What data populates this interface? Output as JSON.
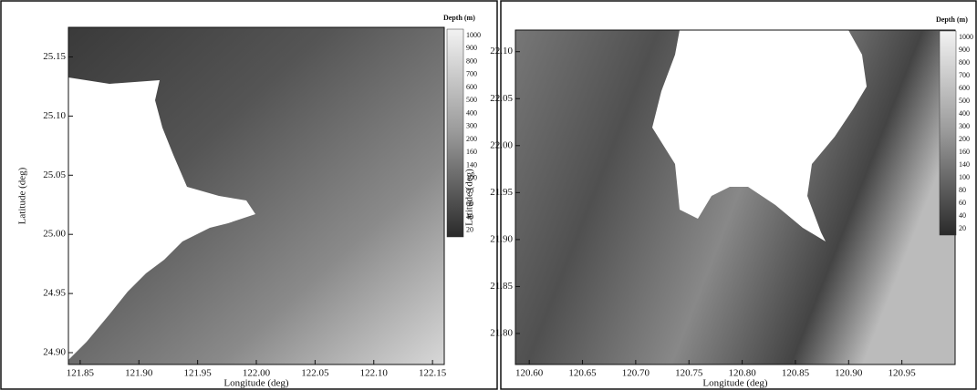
{
  "chart_data": [
    {
      "type": "heatmap",
      "xlabel": "Longitude (deg)",
      "ylabel": "Latitude (deg)",
      "xlim": [
        121.84,
        122.16
      ],
      "ylim": [
        24.89,
        25.175
      ],
      "xticks": [
        121.85,
        {
          "value": 121.9,
          "label": "121.90"
        },
        121.95,
        {
          "value": 122,
          "label": "122.00"
        },
        122.05,
        {
          "value": 122.1,
          "label": "122.10"
        },
        122.15
      ],
      "yticks": [
        {
          "value": 24.9,
          "label": "24.90"
        },
        24.95,
        {
          "value": 25,
          "label": "25.00"
        },
        25.05,
        {
          "value": 25.1,
          "label": "25.10"
        },
        25.15
      ],
      "colorbar": {
        "title": "Depth (m)",
        "labels": [
          1000,
          900,
          800,
          700,
          600,
          500,
          400,
          300,
          200,
          160,
          140,
          100,
          80,
          60,
          40,
          20
        ]
      }
    },
    {
      "type": "heatmap",
      "xlabel": "Longitude (deg)",
      "ylabel": "Latitude (deg)",
      "xlim": [
        120.587,
        121.0
      ],
      "ylim": [
        21.767,
        22.123
      ],
      "xticks": [
        {
          "value": 120.6,
          "label": "120.60"
        },
        120.65,
        {
          "value": 120.7,
          "label": "120.70"
        },
        120.75,
        {
          "value": 120.8,
          "label": "120.80"
        },
        120.85,
        {
          "value": 120.9,
          "label": "120.90"
        },
        120.95
      ],
      "yticks": [
        {
          "value": 21.8,
          "label": "21.80"
        },
        21.85,
        {
          "value": 21.9,
          "label": "21.90"
        },
        21.95,
        {
          "value": 22,
          "label": "22.00"
        },
        22.05,
        {
          "value": 22.1,
          "label": "22.10"
        }
      ],
      "colorbar": {
        "title": "Depth (m)",
        "labels": [
          1000,
          900,
          800,
          700,
          600,
          500,
          400,
          300,
          200,
          160,
          140,
          100,
          80,
          60,
          40,
          20
        ]
      }
    }
  ]
}
